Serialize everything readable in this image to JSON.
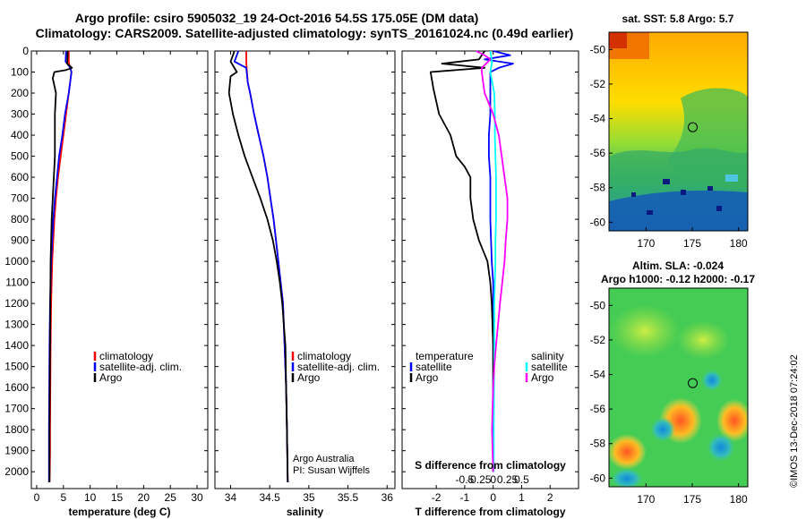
{
  "title_line1": "Argo profile: csiro 5905032_19 24-Oct-2016 54.5S 175.05E (DM data)",
  "title_line2": "Climatology: CARS2009. Satellite-adjusted climatology: synTS_20161024.nc (0.49d earlier)",
  "timestamp": "©IMOS 13-Dec-2018 07:24:02",
  "colors": {
    "red": "#ff0000",
    "blue": "#0000ff",
    "black": "#000000",
    "cyan": "#00ffff",
    "magenta": "#ff00ff"
  },
  "chart_data": [
    {
      "id": "temperature",
      "type": "line",
      "xlabel": "temperature (deg C)",
      "ylabel": "",
      "xlim": [
        -1,
        32
      ],
      "ylim": [
        2080,
        0
      ],
      "xticks": [
        0,
        5,
        10,
        15,
        20,
        25,
        30
      ],
      "xtick_labels": [
        "0",
        "5",
        "10",
        "15",
        "20",
        "25",
        "30"
      ],
      "yticks": [
        0,
        100,
        200,
        300,
        400,
        500,
        600,
        700,
        800,
        900,
        1000,
        1100,
        1200,
        1300,
        1400,
        1500,
        1600,
        1700,
        1800,
        1900,
        2000
      ],
      "ytick_labels": [
        "0",
        "100",
        "200",
        "300",
        "400",
        "500",
        "600",
        "700",
        "800",
        "900",
        "1000",
        "1100",
        "1200",
        "1300",
        "1400",
        "1500",
        "1600",
        "1700",
        "1800",
        "1900",
        "2000"
      ],
      "legend": [
        {
          "label": "climatology",
          "color": "#ff0000"
        },
        {
          "label": "satellite-adj. clim.",
          "color": "#0000ff"
        },
        {
          "label": "Argo",
          "color": "#000000"
        }
      ],
      "series": [
        {
          "name": "climatology",
          "color": "#ff0000",
          "x": [
            6.0,
            6.0,
            6.2,
            6.5,
            6.0,
            5.5,
            5.0,
            4.5,
            4.0,
            3.6,
            3.3,
            3.1,
            2.9,
            2.8,
            2.7,
            2.6,
            2.55,
            2.5,
            2.5,
            2.45,
            2.4
          ],
          "y": [
            0,
            50,
            80,
            100,
            200,
            300,
            400,
            500,
            600,
            700,
            800,
            900,
            1000,
            1100,
            1200,
            1400,
            1600,
            1800,
            1900,
            2000,
            2050
          ]
        },
        {
          "name": "satellite-adj. clim.",
          "color": "#0000ff",
          "x": [
            5.5,
            5.4,
            6.3,
            6.5,
            6.0,
            5.3,
            4.8,
            4.2,
            3.8,
            3.4,
            3.1,
            2.9,
            2.7,
            2.6,
            2.5,
            2.4,
            2.35,
            2.3,
            2.3,
            2.3
          ],
          "y": [
            0,
            50,
            80,
            100,
            200,
            300,
            400,
            500,
            600,
            700,
            800,
            900,
            1000,
            1100,
            1200,
            1400,
            1600,
            1800,
            2000,
            2050
          ]
        },
        {
          "name": "Argo",
          "color": "#000000",
          "x": [
            5.8,
            5.7,
            6.6,
            5.5,
            3.3,
            3.0,
            3.6,
            3.4,
            3.4,
            3.4,
            3.2,
            3.0,
            2.8,
            2.7,
            2.6,
            2.55,
            2.5,
            2.45,
            2.4,
            2.4,
            2.4
          ],
          "y": [
            0,
            60,
            80,
            90,
            100,
            130,
            200,
            300,
            400,
            500,
            600,
            700,
            800,
            900,
            1000,
            1200,
            1400,
            1600,
            1800,
            2000,
            2050
          ]
        }
      ]
    },
    {
      "id": "salinity",
      "type": "line",
      "xlabel": "salinity",
      "ylabel": "",
      "xlim": [
        33.8,
        36.1
      ],
      "ylim": [
        2080,
        0
      ],
      "xticks": [
        34,
        34.5,
        35,
        35.5,
        36
      ],
      "xtick_labels": [
        "34",
        "34.5",
        "35",
        "35.5",
        "36"
      ],
      "legend": [
        {
          "label": "climatology",
          "color": "#ff0000"
        },
        {
          "label": "satellite-adj. clim.",
          "color": "#0000ff"
        },
        {
          "label": "Argo",
          "color": "#000000"
        }
      ],
      "annotation_lines": [
        "Argo Australia",
        "PI: Susan Wijffels"
      ],
      "series": [
        {
          "name": "climatology",
          "color": "#ff0000",
          "x": [
            34.2,
            34.2,
            34.21,
            34.22,
            34.25,
            34.3,
            34.36,
            34.42,
            34.47,
            34.51,
            34.55,
            34.58,
            34.61,
            34.64,
            34.67,
            34.69,
            34.71,
            34.72,
            34.73
          ],
          "y": [
            0,
            50,
            100,
            150,
            200,
            300,
            400,
            500,
            600,
            700,
            800,
            900,
            1000,
            1100,
            1200,
            1400,
            1600,
            1800,
            2050
          ]
        },
        {
          "name": "satellite-adj. clim.",
          "color": "#0000ff",
          "x": [
            34.1,
            34.05,
            34.2,
            34.22,
            34.25,
            34.3,
            34.36,
            34.42,
            34.47,
            34.51,
            34.55,
            34.58,
            34.61,
            34.64,
            34.67,
            34.69,
            34.71,
            34.72,
            34.73
          ],
          "y": [
            0,
            50,
            80,
            150,
            200,
            300,
            400,
            500,
            600,
            700,
            800,
            900,
            1000,
            1100,
            1200,
            1400,
            1600,
            1800,
            2050
          ]
        },
        {
          "name": "Argo",
          "color": "#000000",
          "x": [
            34.05,
            34.0,
            34.08,
            34.0,
            33.98,
            34.03,
            34.1,
            34.18,
            34.28,
            34.38,
            34.47,
            34.54,
            34.59,
            34.63,
            34.66,
            34.68,
            34.7,
            34.71,
            34.72,
            34.73
          ],
          "y": [
            0,
            50,
            100,
            120,
            200,
            300,
            400,
            500,
            600,
            700,
            800,
            900,
            1000,
            1100,
            1200,
            1300,
            1400,
            1600,
            1800,
            2050
          ]
        }
      ]
    },
    {
      "id": "difference",
      "type": "line",
      "xlabel": "T difference from climatology",
      "ylabel": "",
      "xlim": [
        -3.2,
        3.0
      ],
      "ylim": [
        2080,
        0
      ],
      "xticks": [
        -2,
        -1,
        0,
        1,
        2
      ],
      "xtick_labels": [
        "-2",
        "-1",
        "0",
        "1",
        "2"
      ],
      "s_axis_label": "S difference from climatology",
      "s_ticks": [
        -0.5,
        -0.25,
        0,
        0.25,
        0.5
      ],
      "s_tick_labels": [
        "-0.5",
        "-0.25",
        "0",
        "0.25",
        "0.5"
      ],
      "legend_temperature": [
        {
          "label": "temperature",
          "color": ""
        },
        {
          "label": "satellite",
          "color": "#0000ff"
        },
        {
          "label": "Argo",
          "color": "#000000"
        }
      ],
      "legend_salinity": [
        {
          "label": "salinity",
          "color": ""
        },
        {
          "label": "satellite",
          "color": "#00ffff"
        },
        {
          "label": "Argo",
          "color": "#ff00ff"
        }
      ],
      "series": [
        {
          "name": "T satellite",
          "color": "#0000ff",
          "x": [
            0,
            0.6,
            -0.3,
            0.7,
            0.2,
            -0.1,
            -0.1,
            -0.1,
            -0.15,
            -0.15,
            -0.1,
            -0.1,
            -0.05,
            0,
            0,
            0,
            0,
            0,
            0,
            0
          ],
          "y": [
            0,
            20,
            40,
            60,
            80,
            100,
            200,
            300,
            400,
            500,
            600,
            800,
            1000,
            1100,
            1200,
            1400,
            1600,
            1800,
            1900,
            2000
          ]
        },
        {
          "name": "T Argo",
          "color": "#000000",
          "x": [
            -0.3,
            -0.5,
            -1.8,
            -0.3,
            -2.2,
            -2.1,
            -1.9,
            -1.5,
            -1.3,
            -1.0,
            -0.8,
            -0.8,
            -0.7,
            -0.5,
            -0.2,
            -0.1,
            -0.05,
            0,
            0,
            0,
            0
          ],
          "y": [
            0,
            40,
            60,
            80,
            100,
            180,
            300,
            400,
            500,
            550,
            600,
            700,
            800,
            900,
            1000,
            1100,
            1200,
            1400,
            1600,
            1800,
            2000
          ]
        },
        {
          "name": "S satellite",
          "color": "#00ffff",
          "x": [
            -0.05,
            -0.02,
            -0.05,
            0.02,
            0.03,
            0.03,
            0.04,
            0.05,
            0.05,
            0.05,
            0.04,
            0.04,
            0.03,
            0.02,
            0.02,
            0.01,
            0.01
          ],
          "y": [
            0,
            50,
            100,
            200,
            300,
            400,
            500,
            600,
            700,
            800,
            900,
            1000,
            1100,
            1200,
            1400,
            1800,
            2000
          ]
        },
        {
          "name": "S Argo",
          "color": "#ff00ff",
          "x": [
            -0.3,
            -0.15,
            -0.05,
            -0.2,
            -0.2,
            -0.15,
            0.0,
            0.1,
            0.15,
            0.2,
            0.25,
            0.25,
            0.22,
            0.2,
            0.12,
            0.05,
            0.02,
            0.0,
            -0.02,
            0.0
          ],
          "y": [
            0,
            20,
            40,
            80,
            100,
            200,
            300,
            400,
            500,
            600,
            700,
            800,
            900,
            1000,
            1200,
            1400,
            1500,
            1600,
            1800,
            2000
          ]
        }
      ]
    },
    {
      "id": "sst-map",
      "type": "heatmap",
      "title": "sat. SST: 5.8 Argo: 5.7",
      "xlim": [
        166,
        181
      ],
      "ylim": [
        -60.5,
        -49
      ],
      "xticks": [
        170,
        175,
        180
      ],
      "xtick_labels": [
        "170",
        "175",
        "180"
      ],
      "yticks": [
        -50,
        -52,
        -54,
        -56,
        -58,
        -60
      ],
      "ytick_labels": [
        "-50",
        "-52",
        "-54",
        "-56",
        "-58",
        "-60"
      ],
      "float_position": {
        "lon": 175.05,
        "lat": -54.5
      }
    },
    {
      "id": "sla-map",
      "type": "heatmap",
      "title": "Altim. SLA: -0.024",
      "subtitle": "Argo h1000: -0.12 h2000: -0.17",
      "xlim": [
        166,
        181
      ],
      "ylim": [
        -60.5,
        -49
      ],
      "xticks": [
        170,
        175,
        180
      ],
      "xtick_labels": [
        "170",
        "175",
        "180"
      ],
      "yticks": [
        -50,
        -52,
        -54,
        -56,
        -58,
        -60
      ],
      "ytick_labels": [
        "-50",
        "-52",
        "-54",
        "-56",
        "-58",
        "-60"
      ],
      "float_position": {
        "lon": 175.05,
        "lat": -54.5
      }
    }
  ]
}
